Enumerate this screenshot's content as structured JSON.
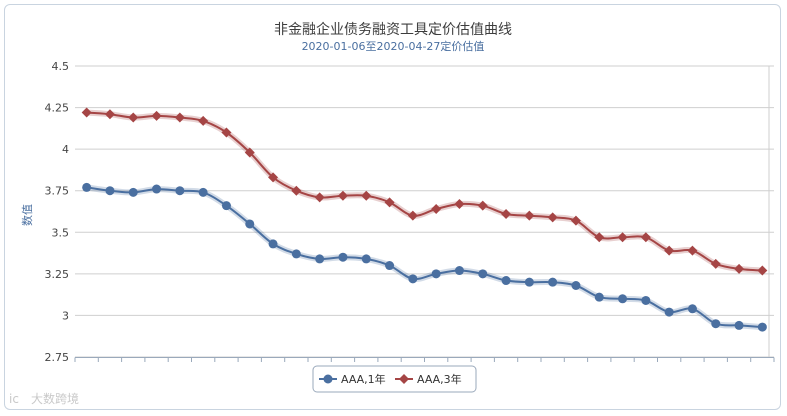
{
  "chart_data": {
    "type": "line",
    "title": "非金融企业债务融资工具定价估值曲线",
    "subtitle": "2020-01-06至2020-04-27定价估值",
    "xlabel": "",
    "ylabel": "数值",
    "ylim": [
      2.75,
      4.5
    ],
    "yticks": [
      "4.5",
      "4.25",
      "4",
      "3.75",
      "3.5",
      "3.25",
      "3",
      "2.75"
    ],
    "ytick_values": [
      4.5,
      4.25,
      4,
      3.75,
      3.5,
      3.25,
      3,
      2.75
    ],
    "grid": true,
    "legend_position": "bottom-center",
    "x_point_count": 30,
    "series": [
      {
        "name": "AAA,1年",
        "color": "#4a6fa0",
        "marker": "circle",
        "values": [
          3.77,
          3.75,
          3.74,
          3.76,
          3.75,
          3.74,
          3.66,
          3.55,
          3.43,
          3.37,
          3.34,
          3.35,
          3.34,
          3.3,
          3.22,
          3.25,
          3.27,
          3.25,
          3.21,
          3.2,
          3.2,
          3.18,
          3.11,
          3.1,
          3.09,
          3.02,
          3.04,
          2.95,
          2.94,
          2.93
        ]
      },
      {
        "name": "AAA,3年",
        "color": "#a54545",
        "marker": "diamond",
        "values": [
          4.22,
          4.21,
          4.19,
          4.2,
          4.19,
          4.17,
          4.1,
          3.98,
          3.83,
          3.75,
          3.71,
          3.72,
          3.72,
          3.68,
          3.6,
          3.64,
          3.67,
          3.66,
          3.61,
          3.6,
          3.59,
          3.57,
          3.47,
          3.47,
          3.47,
          3.39,
          3.39,
          3.31,
          3.28,
          3.27
        ]
      }
    ]
  },
  "watermark": "大数跨境",
  "watermark_logo": "ic"
}
